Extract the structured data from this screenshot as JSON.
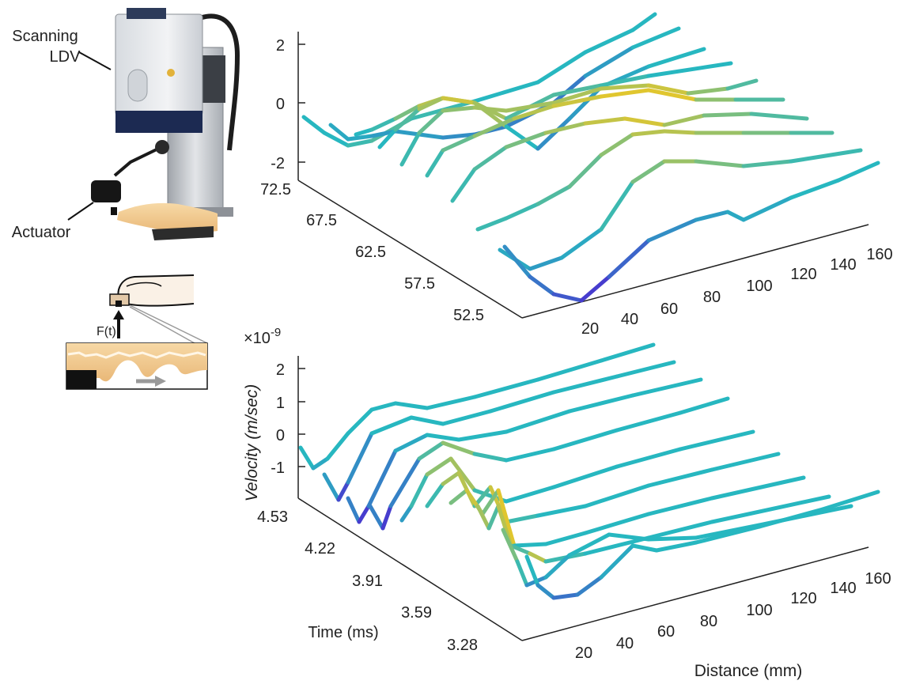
{
  "apparatus": {
    "label_top_line1": "Scanning",
    "label_top_line2": "LDV",
    "label_actuator": "Actuator",
    "force_label": "F(t)"
  },
  "colors": {
    "low": "#4a2fd0",
    "mid": "#27b7c0",
    "high": "#f5c81f",
    "axis": "#222222"
  },
  "chart_data": [
    {
      "type": "line3d",
      "id": "top",
      "z_ticks": [
        "2",
        "0",
        "-2"
      ],
      "y_ticks": [
        "72.5",
        "67.5",
        "62.5",
        "57.5",
        "52.5"
      ],
      "x_ticks": [
        "20",
        "40",
        "60",
        "80",
        "100",
        "120",
        "140",
        "160"
      ],
      "series_count": 10
    },
    {
      "type": "line3d",
      "id": "bottom",
      "exponent": "×10",
      "exponent_power": "-9",
      "zlabel": "Velocity (m/sec)",
      "z_ticks": [
        "2",
        "1",
        "0",
        "-1"
      ],
      "y_ticks": [
        "4.53",
        "4.22",
        "3.91",
        "3.59",
        "3.28"
      ],
      "ylabel": "Time (ms)",
      "x_ticks": [
        "20",
        "40",
        "60",
        "80",
        "100",
        "120",
        "140",
        "160"
      ],
      "xlabel": "Distance (mm)",
      "series_count": 10
    }
  ]
}
